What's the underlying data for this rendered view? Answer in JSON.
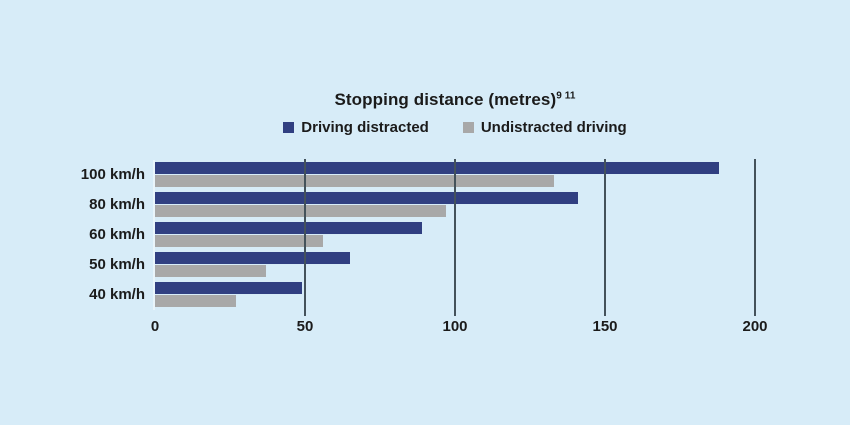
{
  "header": {
    "title": "Stopping distance (metres)",
    "title_superscript": "9 11"
  },
  "legend": [
    {
      "label": "Driving distracted",
      "color": "#303f81"
    },
    {
      "label": "Undistracted driving",
      "color": "#a8a8a8"
    }
  ],
  "colors": {
    "background": "#d7ecf8",
    "gridline": "#44525b",
    "axis_line": "#e9f5fb",
    "text": "#1b1b1b"
  },
  "chart_data": {
    "type": "bar",
    "orientation": "horizontal",
    "title": "Stopping distance (metres)⁹ ¹¹",
    "categories": [
      "100 km/h",
      "80 km/h",
      "60 km/h",
      "50 km/h",
      "40 km/h"
    ],
    "series": [
      {
        "name": "Driving distracted",
        "color": "#303f81",
        "values": [
          188,
          141,
          89,
          65,
          49
        ]
      },
      {
        "name": "Undistracted driving",
        "color": "#a8a8a8",
        "values": [
          133,
          97,
          56,
          37,
          27
        ]
      }
    ],
    "xlabel": "",
    "ylabel": "",
    "xlim": [
      0,
      200
    ],
    "xticks": [
      0,
      50,
      100,
      150,
      200
    ],
    "grid": "vertical gridlines at ticks except 0",
    "legend_position": "top-center"
  }
}
